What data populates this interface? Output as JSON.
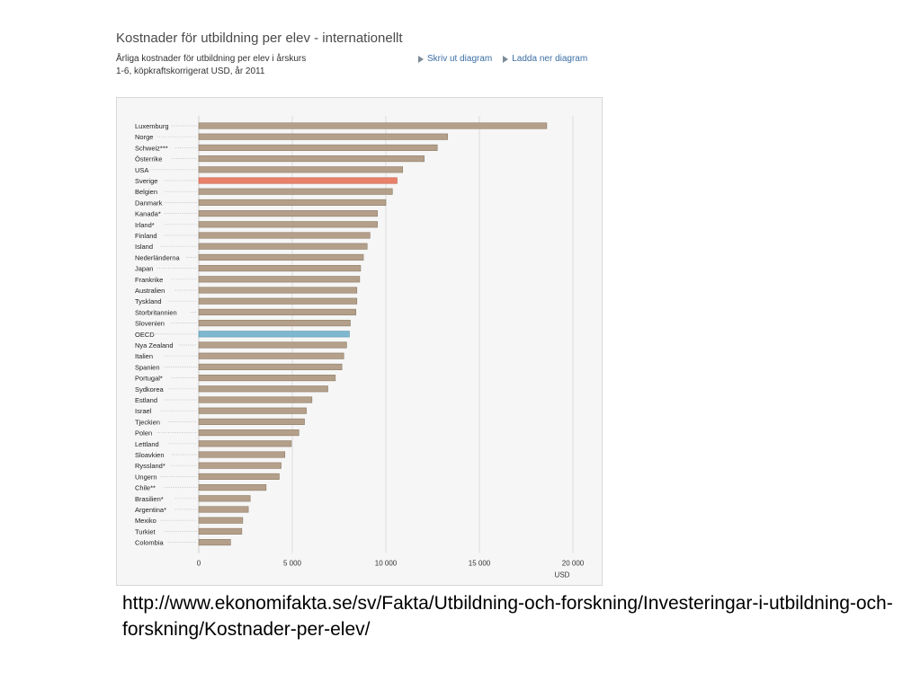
{
  "header": {
    "title": "Kostnader för utbildning per elev - internationellt",
    "subtitle": "Årliga kostnader för utbildning per elev i årskurs 1-6, köpkraftskorrigerat USD, år 2011",
    "links": [
      {
        "label": "Skriv ut diagram",
        "icon": "triangle-right-icon"
      },
      {
        "label": "Ladda ner diagram",
        "icon": "triangle-right-icon"
      }
    ]
  },
  "colors": {
    "default_bar": "#b4a08a",
    "sweden_bar": "#e8806a",
    "oecd_bar": "#7eb8d0"
  },
  "chart_data": {
    "type": "bar",
    "orientation": "horizontal",
    "title": "Kostnader för utbildning per elev - internationellt",
    "xlabel": "USD",
    "xlim": [
      0,
      20000
    ],
    "xticks": [
      0,
      5000,
      10000,
      15000,
      20000
    ],
    "xtick_labels": [
      "0",
      "5 000",
      "10 000",
      "15 000",
      "20 000"
    ],
    "grid": true,
    "categories": [
      "Luxemburg",
      "Norge",
      "Schweiz***",
      "Österrike",
      "USA",
      "Sverige",
      "Belgien",
      "Danmark",
      "Kanada*",
      "Irland*",
      "Finland",
      "Island",
      "Nederländerna",
      "Japan",
      "Frankrike",
      "Australien",
      "Tyskland",
      "Storbritannien",
      "Slovenien",
      "OECD",
      "Nya Zealand",
      "Italien",
      "Spanien",
      "Portugal*",
      "Sydkorea",
      "Estland",
      "Israel",
      "Tjeckien",
      "Polen",
      "Lettland",
      "Sloavkien",
      "Ryssland*",
      "Ungern",
      "Chile**",
      "Brasilien*",
      "Argentina*",
      "Mexiko",
      "Turkiet",
      "Colombia"
    ],
    "values": [
      18600,
      13300,
      12750,
      12050,
      10900,
      10600,
      10350,
      10000,
      9550,
      9550,
      9150,
      9000,
      8800,
      8650,
      8600,
      8450,
      8450,
      8400,
      8100,
      8050,
      7900,
      7750,
      7650,
      7300,
      6900,
      6050,
      5750,
      5650,
      5350,
      4950,
      4600,
      4400,
      4300,
      3600,
      2750,
      2650,
      2350,
      2300,
      1700
    ],
    "highlight": {
      "Sverige": "sweden",
      "OECD": "oecd"
    }
  },
  "source_url": "http://www.ekonomifakta.se/sv/Fakta/Utbildning-och-forskning/Investeringar-i-utbildning-och-forskning/Kostnader-per-elev/"
}
